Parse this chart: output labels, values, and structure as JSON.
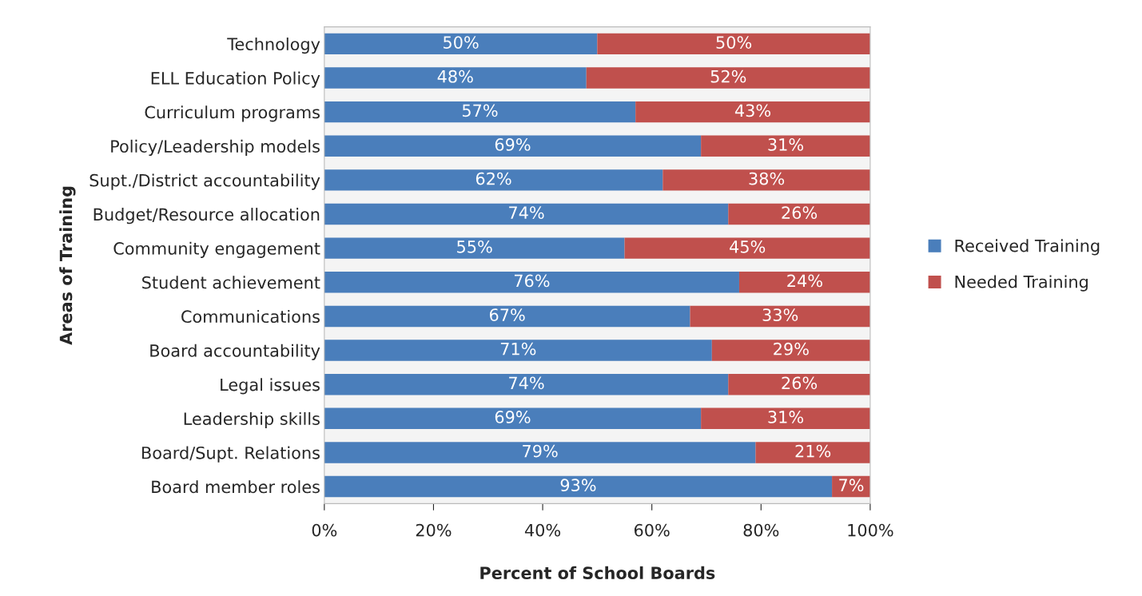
{
  "chart_data": {
    "type": "bar",
    "orientation": "horizontal",
    "stacked": true,
    "xlabel": "Percent of School Boards",
    "ylabel": "Areas of Training",
    "categories": [
      "Technology",
      "ELL Education Policy",
      "Curriculum programs",
      "Policy/Leadership models",
      "Supt./District accountability",
      "Budget/Resource allocation",
      "Community engagement",
      "Student achievement",
      "Communications",
      "Board accountability",
      "Legal issues",
      "Leadership skills",
      "Board/Supt. Relations",
      "Board member roles"
    ],
    "series": [
      {
        "name": "Received Training",
        "color": "#4a7ebb",
        "values": [
          50,
          48,
          57,
          69,
          62,
          74,
          55,
          76,
          67,
          71,
          74,
          69,
          79,
          93
        ],
        "value_labels": [
          "50%",
          "48%",
          "57%",
          "69%",
          "62%",
          "74%",
          "55%",
          "76%",
          "67%",
          "71%",
          "74%",
          "69%",
          "79%",
          "93%"
        ]
      },
      {
        "name": "Needed Training",
        "color": "#c0504d",
        "values": [
          50,
          52,
          43,
          31,
          38,
          26,
          45,
          24,
          33,
          29,
          26,
          31,
          21,
          7
        ],
        "value_labels": [
          "50%",
          "52%",
          "43%",
          "31%",
          "38%",
          "26%",
          "45%",
          "24%",
          "33%",
          "29%",
          "26%",
          "31%",
          "21%",
          "7%"
        ]
      }
    ],
    "xlim": [
      0,
      100
    ],
    "xticks": [
      {
        "value": 0,
        "label": "0%"
      },
      {
        "value": 20,
        "label": "20%"
      },
      {
        "value": 40,
        "label": "40%"
      },
      {
        "value": 60,
        "label": "60%"
      },
      {
        "value": 80,
        "label": "80%"
      },
      {
        "value": 100,
        "label": "100%"
      }
    ],
    "legend": "right"
  }
}
